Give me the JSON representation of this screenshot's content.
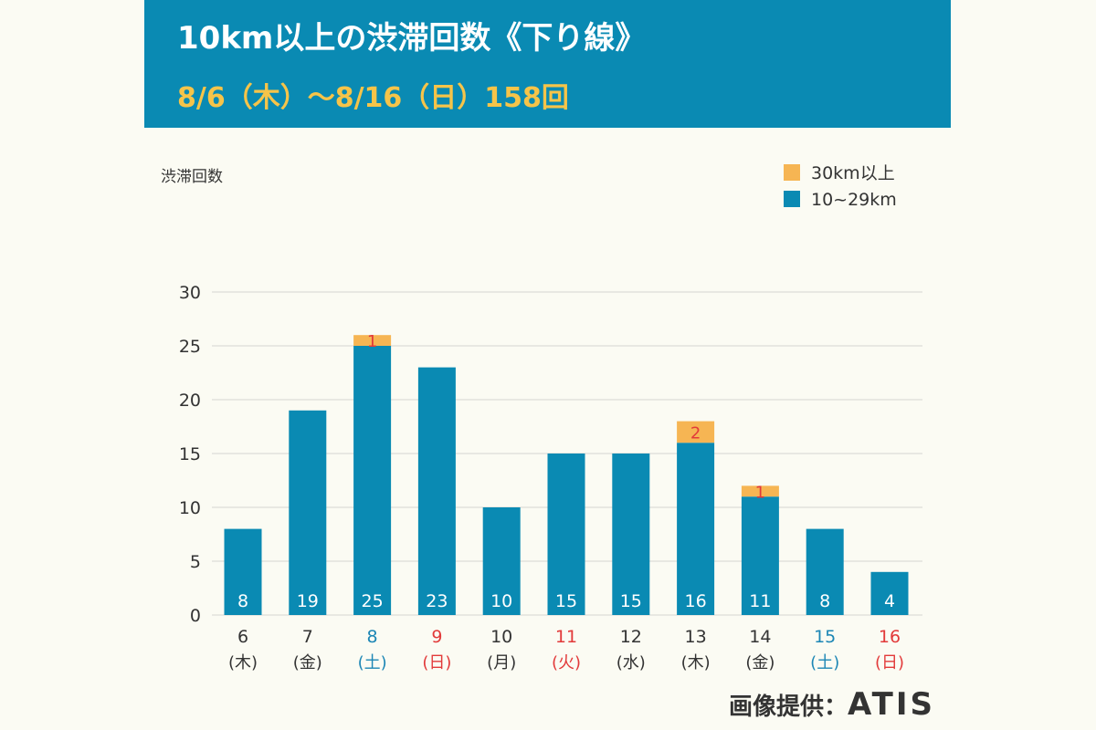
{
  "header": {
    "title": "10km以上の渋滞回数《下り線》",
    "subtitle": "8/6（木）～8/16（日）158回"
  },
  "credit": {
    "label": "画像提供：",
    "brand": "ATIS"
  },
  "colors": {
    "header_bg": "#0a8ab3",
    "subtitle": "#f6c449",
    "series_short": "#0a8ab3",
    "series_long": "#f6b553",
    "weekday": "#333333",
    "saturday": "#1c86b5",
    "holiday": "#e23a3a"
  },
  "chart_data": {
    "type": "bar",
    "stacked": true,
    "ylabel": "渋滞回数",
    "ylim": [
      0,
      30
    ],
    "yticks": [
      0,
      5,
      10,
      15,
      20,
      25,
      30
    ],
    "grid": true,
    "legend_position": "top-right",
    "categories": [
      {
        "day": "6",
        "dow": "(木)",
        "kind": "weekday"
      },
      {
        "day": "7",
        "dow": "(金)",
        "kind": "weekday"
      },
      {
        "day": "8",
        "dow": "(土)",
        "kind": "saturday"
      },
      {
        "day": "9",
        "dow": "(日)",
        "kind": "holiday"
      },
      {
        "day": "10",
        "dow": "(月)",
        "kind": "weekday"
      },
      {
        "day": "11",
        "dow": "(火)",
        "kind": "holiday"
      },
      {
        "day": "12",
        "dow": "(水)",
        "kind": "weekday"
      },
      {
        "day": "13",
        "dow": "(木)",
        "kind": "weekday"
      },
      {
        "day": "14",
        "dow": "(金)",
        "kind": "weekday"
      },
      {
        "day": "15",
        "dow": "(土)",
        "kind": "saturday"
      },
      {
        "day": "16",
        "dow": "(日)",
        "kind": "holiday"
      }
    ],
    "series": [
      {
        "name": "10~29km",
        "color": "#0a8ab3",
        "values": [
          8,
          19,
          25,
          23,
          10,
          15,
          15,
          16,
          11,
          8,
          4
        ]
      },
      {
        "name": "30km以上",
        "color": "#f6b553",
        "values": [
          0,
          0,
          1,
          0,
          0,
          0,
          0,
          2,
          1,
          0,
          0
        ]
      }
    ]
  }
}
